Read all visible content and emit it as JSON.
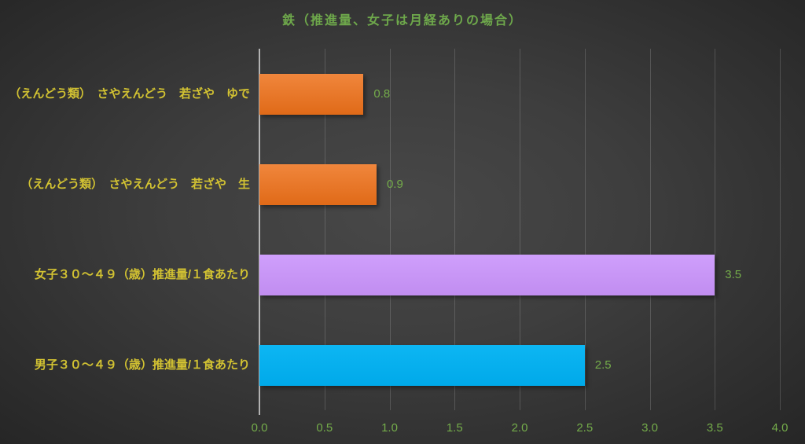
{
  "chart_data": {
    "type": "bar",
    "orientation": "horizontal",
    "title": "鉄（推進量、女子は月経ありの場合）",
    "categories": [
      "（えんどう類）　さやえんどう　若ざや　ゆで",
      "（えんどう類）　さやえんどう　若ざや　生",
      "女子３０～４９（歳）推進量/１食あたり",
      "男子３０～４９（歳）推進量/１食あたり"
    ],
    "values": [
      0.8,
      0.9,
      3.5,
      2.5
    ],
    "data_labels": [
      "0.8",
      "0.9",
      "3.5",
      "2.5"
    ],
    "x_ticks": [
      "0.0",
      "0.5",
      "1.0",
      "1.5",
      "2.0",
      "2.5",
      "3.0",
      "3.5",
      "4.0"
    ],
    "xlim": [
      0,
      4
    ],
    "grid": true,
    "legend": false,
    "bar_gradients": [
      [
        "#f0863c",
        "#e06a18"
      ],
      [
        "#f0863c",
        "#e06a18"
      ],
      [
        "#cf9ffc",
        "#c18df0"
      ],
      [
        "#0db6f3",
        "#00a9e9"
      ]
    ]
  },
  "colors": {
    "title": "#6ea84b",
    "category_label": "#d2c232",
    "value_label": "#74ac4a",
    "tick_label": "#74ac4a"
  }
}
